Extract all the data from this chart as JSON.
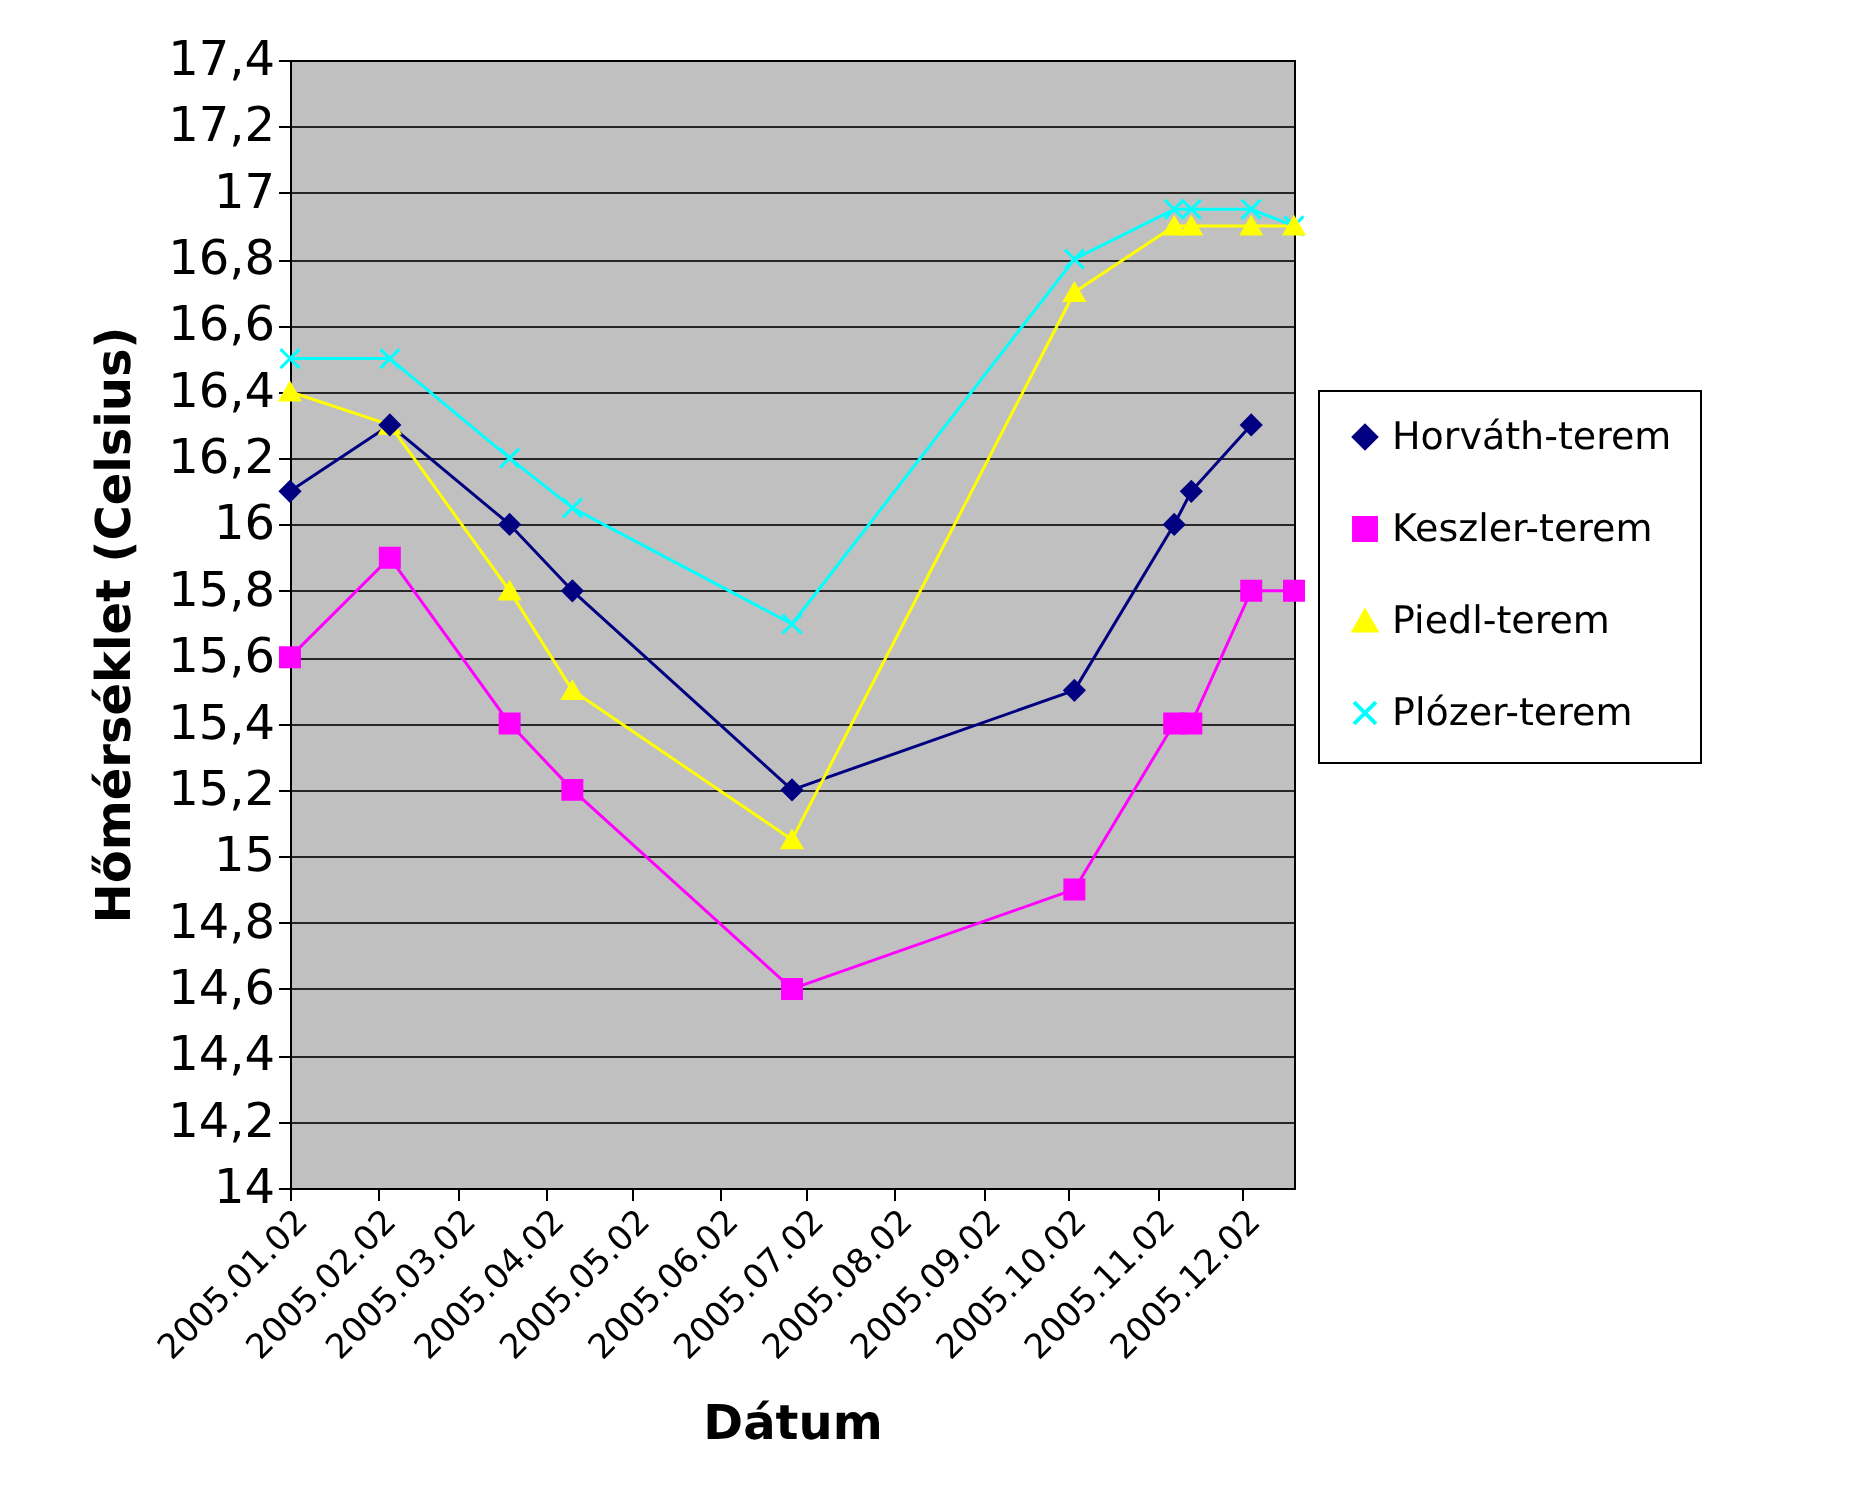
{
  "chart_data": {
    "type": "line",
    "xlabel": "Dátum",
    "ylabel": "Hőmérséklet (Celsius)",
    "x": [
      "2005-01-02",
      "2005-02-06",
      "2005-03-20",
      "2005-04-11",
      "2005-06-27",
      "2005-10-04",
      "2005-11-08",
      "2005-11-14",
      "2005-12-05",
      "2005-12-20"
    ],
    "series": [
      {
        "name": "Horváth-terem",
        "color": "#000080",
        "marker": "diamond",
        "values": [
          16.1,
          16.3,
          16.0,
          15.8,
          15.2,
          15.5,
          16.0,
          16.1,
          16.3,
          null
        ]
      },
      {
        "name": "Keszler-terem",
        "color": "#ff00ff",
        "marker": "square",
        "values": [
          15.6,
          15.9,
          15.4,
          15.2,
          14.6,
          14.9,
          15.4,
          15.4,
          15.8,
          15.8
        ]
      },
      {
        "name": "Piedl-terem",
        "color": "#ffff00",
        "marker": "triangle",
        "values": [
          16.4,
          16.3,
          15.8,
          15.5,
          15.05,
          16.7,
          16.9,
          16.9,
          16.9,
          16.9
        ]
      },
      {
        "name": "Plózer-terem",
        "color": "#00ffff",
        "marker": "cross",
        "values": [
          16.5,
          16.5,
          16.2,
          16.05,
          15.7,
          16.8,
          16.95,
          16.95,
          16.95,
          16.9
        ]
      }
    ],
    "xlim": [
      "2005-01-02",
      "2005-12-20"
    ],
    "xticks": [
      {
        "value": "2005-01-02",
        "label": "2005.01.02"
      },
      {
        "value": "2005-02-02",
        "label": "2005.02.02"
      },
      {
        "value": "2005-03-02",
        "label": "2005.03.02"
      },
      {
        "value": "2005-04-02",
        "label": "2005.04.02"
      },
      {
        "value": "2005-05-02",
        "label": "2005.05.02"
      },
      {
        "value": "2005-06-02",
        "label": "2005.06.02"
      },
      {
        "value": "2005-07-02",
        "label": "2005.07.02"
      },
      {
        "value": "2005-08-02",
        "label": "2005.08.02"
      },
      {
        "value": "2005-09-02",
        "label": "2005.09.02"
      },
      {
        "value": "2005-10-02",
        "label": "2005.10.02"
      },
      {
        "value": "2005-11-02",
        "label": "2005.11.02"
      },
      {
        "value": "2005-12-02",
        "label": "2005.12.02"
      }
    ],
    "ylim": [
      14,
      17.4
    ],
    "yticks": [
      {
        "value": 14,
        "label": "14"
      },
      {
        "value": 14.2,
        "label": "14,2"
      },
      {
        "value": 14.4,
        "label": "14,4"
      },
      {
        "value": 14.6,
        "label": "14,6"
      },
      {
        "value": 14.8,
        "label": "14,8"
      },
      {
        "value": 15,
        "label": "15"
      },
      {
        "value": 15.2,
        "label": "15,2"
      },
      {
        "value": 15.4,
        "label": "15,4"
      },
      {
        "value": 15.6,
        "label": "15,6"
      },
      {
        "value": 15.8,
        "label": "15,8"
      },
      {
        "value": 16,
        "label": "16"
      },
      {
        "value": 16.2,
        "label": "16,2"
      },
      {
        "value": 16.4,
        "label": "16,4"
      },
      {
        "value": 16.6,
        "label": "16,6"
      },
      {
        "value": 16.8,
        "label": "16,8"
      },
      {
        "value": 17,
        "label": "17"
      },
      {
        "value": 17.2,
        "label": "17,2"
      },
      {
        "value": 17.4,
        "label": "17,4"
      }
    ],
    "grid": "y",
    "legend": "right",
    "line_style": "solid"
  }
}
